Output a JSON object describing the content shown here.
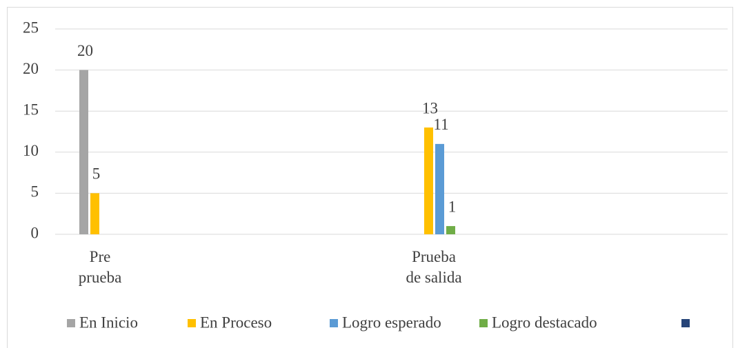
{
  "chart_data": {
    "type": "bar",
    "categories": [
      "Pre prueba",
      "Prueba de salida"
    ],
    "series": [
      {
        "name": "En Inicio",
        "color": "#a5a5a5",
        "values": [
          20,
          null
        ]
      },
      {
        "name": "En Proceso",
        "color": "#ffc000",
        "values": [
          5,
          13
        ]
      },
      {
        "name": "Logro esperado",
        "color": "#5b9bd5",
        "values": [
          null,
          11
        ]
      },
      {
        "name": "Logro destacado",
        "color": "#70ad47",
        "values": [
          null,
          1
        ]
      },
      {
        "name": null,
        "color": "#264478",
        "values": [
          null,
          null
        ]
      }
    ],
    "ylim": [
      0,
      25
    ],
    "yticks": [
      0,
      5,
      10,
      15,
      20,
      25
    ],
    "grid": true,
    "legend": "bottom"
  }
}
